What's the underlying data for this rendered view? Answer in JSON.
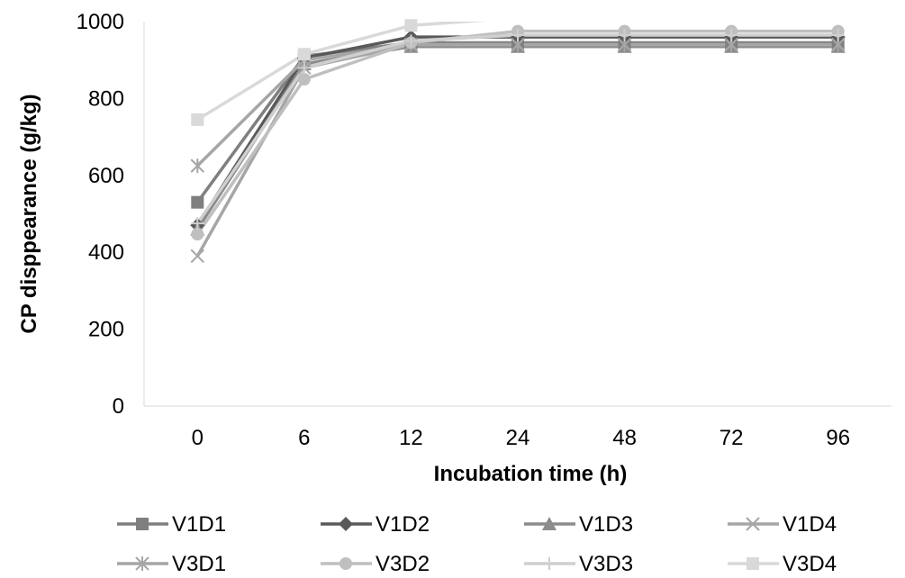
{
  "chart_data": {
    "type": "line",
    "title": "",
    "xlabel": "Incubation time (h)",
    "ylabel": "CP disppearance (g/kg)",
    "categories": [
      "0",
      "6",
      "12",
      "24",
      "48",
      "72",
      "96"
    ],
    "ylim": [
      0,
      1000
    ],
    "yticks": [
      "0",
      "200",
      "400",
      "600",
      "800",
      "1000"
    ],
    "grid": false,
    "legend_position": "bottom",
    "series": [
      {
        "name": "V1D1",
        "marker": "square",
        "color": "#7f7f7f",
        "values": [
          530,
          910,
          945,
          945,
          945,
          945,
          945
        ]
      },
      {
        "name": "V1D2",
        "marker": "diamond",
        "color": "#595959",
        "values": [
          470,
          905,
          960,
          960,
          960,
          960,
          960
        ]
      },
      {
        "name": "V1D3",
        "marker": "triangle",
        "color": "#8c8c8c",
        "values": [
          460,
          890,
          935,
          935,
          935,
          935,
          935
        ]
      },
      {
        "name": "V1D4",
        "marker": "x",
        "color": "#a6a6a6",
        "values": [
          390,
          880,
          940,
          940,
          940,
          940,
          940
        ]
      },
      {
        "name": "V3D1",
        "marker": "star",
        "color": "#a6a6a6",
        "values": [
          625,
          900,
          940,
          940,
          940,
          940,
          940
        ]
      },
      {
        "name": "V3D2",
        "marker": "circle",
        "color": "#bfbfbf",
        "values": [
          447,
          850,
          945,
          975,
          975,
          975,
          975
        ]
      },
      {
        "name": "V3D3",
        "marker": "plus",
        "color": "#cfcfcf",
        "values": [
          475,
          880,
          950,
          965,
          965,
          965,
          965
        ]
      },
      {
        "name": "V3D4",
        "marker": "square",
        "color": "#d9d9d9",
        "values": [
          745,
          915,
          990,
          1010,
          1010,
          1010,
          1010
        ]
      }
    ]
  }
}
